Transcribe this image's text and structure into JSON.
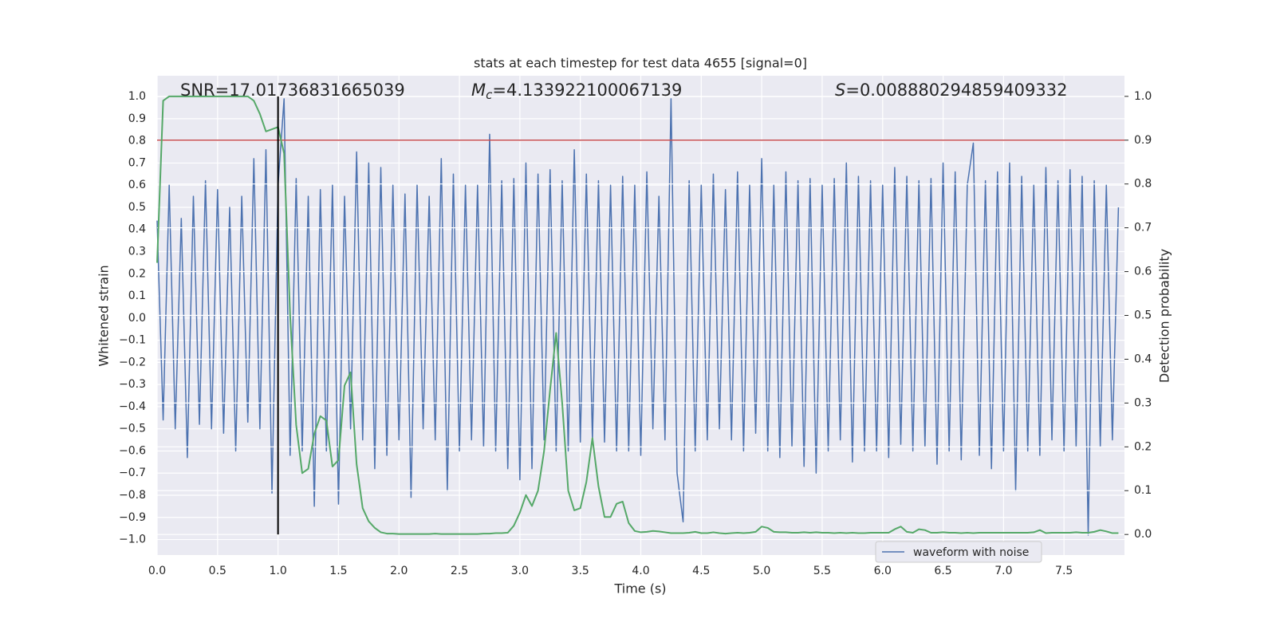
{
  "chart_data": {
    "type": "line",
    "title": "stats at each timestep for test data 4655 [signal=0]",
    "xlabel": "Time (s)",
    "ylabel": "Whitened strain",
    "y2label": "Detection probability",
    "annotations": [
      {
        "text": "SNR=17.01736831665039"
      },
      {
        "symbol": "M",
        "sub": "c",
        "text": "=4.133922100067139"
      },
      {
        "symbol": "S",
        "text": "=0.008880294859409332"
      }
    ],
    "xlim": [
      0,
      8
    ],
    "ylim": [
      -1.07,
      1.094
    ],
    "y2lim": [
      -0.047,
      1.047
    ],
    "xticks": [
      {
        "value": 0,
        "label": "0.0"
      },
      0.5,
      {
        "value": 1,
        "label": "1.0"
      },
      1.5,
      {
        "value": 2,
        "label": "2.0"
      },
      2.5,
      {
        "value": 3,
        "label": "3.0"
      },
      3.5,
      {
        "value": 4,
        "label": "4.0"
      },
      4.5,
      {
        "value": 5,
        "label": "5.0"
      },
      5.5,
      {
        "value": 6,
        "label": "6.0"
      },
      6.5,
      {
        "value": 7,
        "label": "7.0"
      },
      7.5
    ],
    "yticks": [
      {
        "value": -1,
        "label": "−1.0"
      },
      {
        "value": -0.9,
        "label": "−0.9"
      },
      {
        "value": -0.8,
        "label": "−0.8"
      },
      {
        "value": -0.7,
        "label": "−0.7"
      },
      {
        "value": -0.6,
        "label": "−0.6"
      },
      {
        "value": -0.5,
        "label": "−0.5"
      },
      {
        "value": -0.4,
        "label": "−0.4"
      },
      {
        "value": -0.3,
        "label": "−0.3"
      },
      {
        "value": -0.2,
        "label": "−0.2"
      },
      {
        "value": -0.1,
        "label": "−0.1"
      },
      {
        "value": 0,
        "label": "0.0"
      },
      0.1,
      0.2,
      0.3,
      0.4,
      0.5,
      0.6,
      0.7,
      0.8,
      0.9,
      {
        "value": 1,
        "label": "1.0"
      }
    ],
    "y2ticks": [
      {
        "value": 0,
        "label": "0.0"
      },
      0.1,
      0.2,
      0.3,
      0.4,
      0.5,
      0.6,
      0.7,
      0.8,
      0.9,
      {
        "value": 1,
        "label": "1.0"
      }
    ],
    "grid": true,
    "legend_loc": "lower right",
    "x": [
      0,
      0.05,
      0.1,
      0.15,
      0.2,
      0.25,
      0.3,
      0.35,
      0.4,
      0.45,
      0.5,
      0.55,
      0.6,
      0.65,
      0.7,
      0.75,
      0.8,
      0.85,
      0.9,
      0.95,
      1,
      1.05,
      1.1,
      1.15,
      1.2,
      1.25,
      1.3,
      1.35,
      1.4,
      1.45,
      1.5,
      1.55,
      1.6,
      1.65,
      1.7,
      1.75,
      1.8,
      1.85,
      1.9,
      1.95,
      2,
      2.05,
      2.1,
      2.15,
      2.2,
      2.25,
      2.3,
      2.35,
      2.4,
      2.45,
      2.5,
      2.55,
      2.6,
      2.65,
      2.7,
      2.75,
      2.8,
      2.85,
      2.9,
      2.95,
      3,
      3.05,
      3.1,
      3.15,
      3.2,
      3.25,
      3.3,
      3.35,
      3.4,
      3.45,
      3.5,
      3.55,
      3.6,
      3.65,
      3.7,
      3.75,
      3.8,
      3.85,
      3.9,
      3.95,
      4,
      4.05,
      4.1,
      4.15,
      4.2,
      4.25,
      4.3,
      4.35,
      4.4,
      4.45,
      4.5,
      4.55,
      4.6,
      4.65,
      4.7,
      4.75,
      4.8,
      4.85,
      4.9,
      4.95,
      5,
      5.05,
      5.1,
      5.15,
      5.2,
      5.25,
      5.3,
      5.35,
      5.4,
      5.45,
      5.5,
      5.55,
      5.6,
      5.65,
      5.7,
      5.75,
      5.8,
      5.85,
      5.9,
      5.95,
      6,
      6.05,
      6.1,
      6.15,
      6.2,
      6.25,
      6.3,
      6.35,
      6.4,
      6.45,
      6.5,
      6.55,
      6.6,
      6.65,
      6.7,
      6.75,
      6.8,
      6.85,
      6.9,
      6.95,
      7,
      7.05,
      7.1,
      7.15,
      7.2,
      7.25,
      7.3,
      7.35,
      7.4,
      7.45,
      7.5,
      7.55,
      7.6,
      7.65,
      7.7,
      7.75,
      7.8,
      7.85,
      7.9,
      7.95
    ],
    "series": [
      {
        "name": "waveform with noise",
        "color": "#4c72b0",
        "values": [
          0.44,
          -0.46,
          0.6,
          -0.5,
          0.45,
          -0.63,
          0.55,
          -0.48,
          0.62,
          -0.5,
          0.58,
          -0.52,
          0.5,
          -0.6,
          0.55,
          -0.47,
          0.72,
          -0.5,
          0.76,
          -0.79,
          0.6,
          0.99,
          -0.62,
          0.63,
          -0.6,
          0.55,
          -0.85,
          0.58,
          -0.6,
          0.6,
          -0.84,
          0.55,
          -0.5,
          0.75,
          -0.55,
          0.7,
          -0.68,
          0.68,
          -0.62,
          0.6,
          -0.55,
          0.56,
          -0.81,
          0.6,
          -0.5,
          0.55,
          -0.55,
          0.72,
          -0.78,
          0.65,
          -0.6,
          0.6,
          -0.55,
          0.6,
          -0.58,
          0.83,
          -0.6,
          0.62,
          -0.68,
          0.63,
          -0.73,
          0.7,
          -0.68,
          0.65,
          -0.55,
          0.67,
          -0.6,
          0.62,
          -0.6,
          0.76,
          -0.56,
          0.65,
          -0.55,
          0.62,
          -0.56,
          0.6,
          -0.6,
          0.64,
          -0.6,
          0.6,
          -0.62,
          0.66,
          -0.5,
          0.55,
          -0.55,
          0.99,
          -0.7,
          -0.92,
          0.62,
          -0.6,
          0.6,
          -0.55,
          0.65,
          -0.5,
          0.58,
          -0.55,
          0.66,
          -0.6,
          0.6,
          -0.52,
          0.72,
          -0.6,
          0.6,
          -0.63,
          0.66,
          -0.58,
          0.62,
          -0.67,
          0.63,
          -0.7,
          0.6,
          -0.6,
          0.63,
          -0.55,
          0.7,
          -0.65,
          0.64,
          -0.6,
          0.62,
          -0.6,
          0.6,
          -0.63,
          0.68,
          -0.57,
          0.64,
          -0.6,
          0.62,
          -0.58,
          0.63,
          -0.66,
          0.7,
          -0.6,
          0.66,
          -0.64,
          0.6,
          0.79,
          -0.62,
          0.62,
          -0.68,
          0.66,
          -0.6,
          0.7,
          -0.78,
          0.64,
          -0.6,
          0.6,
          -0.62,
          0.68,
          -0.55,
          0.62,
          -0.6,
          0.67,
          -0.58,
          0.64,
          -0.98,
          0.62,
          -0.58,
          0.6,
          -0.55,
          0.5
        ]
      },
      {
        "color": "#55a868",
        "axis": "y2",
        "values": [
          0.62,
          0.99,
          1.0,
          1.0,
          1.0,
          1.0,
          1.0,
          1.0,
          1.0,
          1.0,
          1.0,
          1.0,
          1.0,
          1.0,
          1.0,
          1.0,
          0.99,
          0.96,
          0.92,
          0.925,
          0.93,
          0.87,
          0.5,
          0.25,
          0.14,
          0.15,
          0.23,
          0.27,
          0.26,
          0.155,
          0.17,
          0.34,
          0.37,
          0.16,
          0.06,
          0.03,
          0.015,
          0.005,
          0.002,
          0.002,
          0.001,
          0.001,
          0.001,
          0.001,
          0.001,
          0.001,
          0.002,
          0.001,
          0.001,
          0.001,
          0.001,
          0.001,
          0.001,
          0.001,
          0.002,
          0.002,
          0.003,
          0.003,
          0.004,
          0.02,
          0.05,
          0.09,
          0.065,
          0.1,
          0.19,
          0.33,
          0.46,
          0.3,
          0.1,
          0.055,
          0.06,
          0.12,
          0.22,
          0.11,
          0.04,
          0.04,
          0.07,
          0.075,
          0.026,
          0.008,
          0.005,
          0.006,
          0.008,
          0.007,
          0.005,
          0.003,
          0.003,
          0.003,
          0.004,
          0.006,
          0.003,
          0.003,
          0.005,
          0.003,
          0.002,
          0.003,
          0.004,
          0.003,
          0.004,
          0.006,
          0.018,
          0.015,
          0.006,
          0.005,
          0.005,
          0.004,
          0.004,
          0.005,
          0.004,
          0.005,
          0.004,
          0.004,
          0.003,
          0.004,
          0.003,
          0.004,
          0.003,
          0.003,
          0.004,
          0.004,
          0.004,
          0.004,
          0.012,
          0.018,
          0.006,
          0.004,
          0.012,
          0.01,
          0.004,
          0.004,
          0.005,
          0.004,
          0.004,
          0.003,
          0.004,
          0.003,
          0.004,
          0.004,
          0.004,
          0.004,
          0.004,
          0.004,
          0.004,
          0.004,
          0.004,
          0.005,
          0.01,
          0.003,
          0.004,
          0.004,
          0.004,
          0.004,
          0.005,
          0.004,
          0.004,
          0.006,
          0.01,
          0.007,
          0.003,
          0.003
        ]
      }
    ],
    "hlines": [
      {
        "y": 0.9,
        "axis": "y2",
        "color": "#c44e52"
      }
    ],
    "vlines": [
      {
        "x": 1,
        "ymin": 0,
        "ymax": 1,
        "axis": "y2",
        "color": "#000000"
      }
    ]
  }
}
